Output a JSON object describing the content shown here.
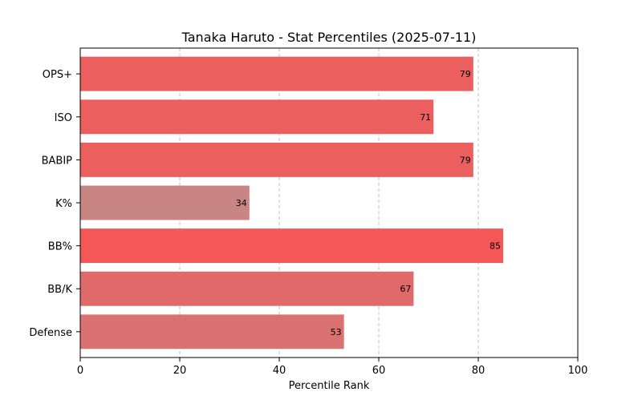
{
  "chart_data": {
    "type": "bar",
    "orientation": "horizontal",
    "title": "Tanaka Haruto - Stat Percentiles (2025-07-11)",
    "xlabel": "Percentile Rank",
    "ylabel": "",
    "xlim": [
      0,
      100
    ],
    "xticks": [
      0,
      20,
      40,
      60,
      80,
      100
    ],
    "grid": "vertical dashed",
    "categories": [
      "OPS+",
      "ISO",
      "BABIP",
      "K%",
      "BB%",
      "BB/K",
      "Defense"
    ],
    "values": [
      79,
      71,
      79,
      34,
      85,
      67,
      53
    ],
    "colors": [
      "#ec5f5f",
      "#ec5f5f",
      "#ec5f5f",
      "#c98584",
      "#f55656",
      "#e06a6a",
      "#d97270"
    ]
  }
}
